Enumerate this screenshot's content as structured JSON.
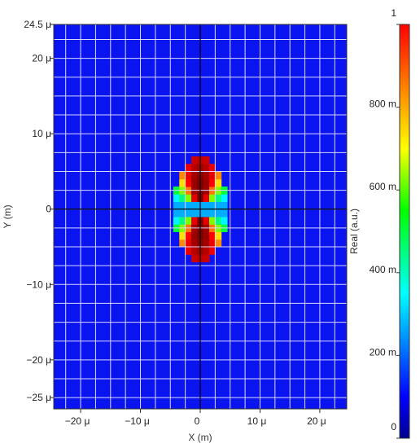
{
  "chart_data": {
    "type": "heatmap",
    "title": "",
    "xlabel": "X (m)",
    "ylabel": "Y (m)",
    "colorbar_label": "Real (a.u.)",
    "xlim": [
      -24.5,
      24.5
    ],
    "ylim": [
      -26.5,
      24.5
    ],
    "unit": "μ",
    "x_ticks": [
      {
        "value": -20,
        "label": "−20 μ"
      },
      {
        "value": -10,
        "label": "−10 μ"
      },
      {
        "value": 0,
        "label": "0"
      },
      {
        "value": 10,
        "label": "10 μ"
      },
      {
        "value": 20,
        "label": "20 μ"
      }
    ],
    "y_ticks": [
      {
        "value": 24.5,
        "label": "24.5 μ"
      },
      {
        "value": 20,
        "label": "20 μ"
      },
      {
        "value": 10,
        "label": "10 μ"
      },
      {
        "value": 0,
        "label": "0"
      },
      {
        "value": -10,
        "label": "−10 μ"
      },
      {
        "value": -20,
        "label": "−20 μ"
      },
      {
        "value": -25,
        "label": "−25 μ"
      }
    ],
    "colorbar_range": [
      0,
      1
    ],
    "colorbar_ticks": [
      {
        "value": 1,
        "label": "1"
      },
      {
        "value": 0.8,
        "label": "800 m"
      },
      {
        "value": 0.6,
        "label": "600 m"
      },
      {
        "value": 0.4,
        "label": "400 m"
      },
      {
        "value": 0.2,
        "label": "200 m"
      },
      {
        "value": 0,
        "label": "0"
      }
    ],
    "colormap": [
      "#00008f",
      "#0000ff",
      "#00ffff",
      "#00ff00",
      "#ffff00",
      "#ff0000",
      "#800000"
    ],
    "background_value": 0.05,
    "grid": true,
    "grid_color": "#d8d8ff",
    "crosshair_color": "#000000",
    "field_pattern": {
      "description_values": "dipole-like pattern centered at origin",
      "center": [
        0,
        0
      ],
      "radius_x": 4.5,
      "radius_y": 7.0,
      "max_value": 1.0
    }
  }
}
